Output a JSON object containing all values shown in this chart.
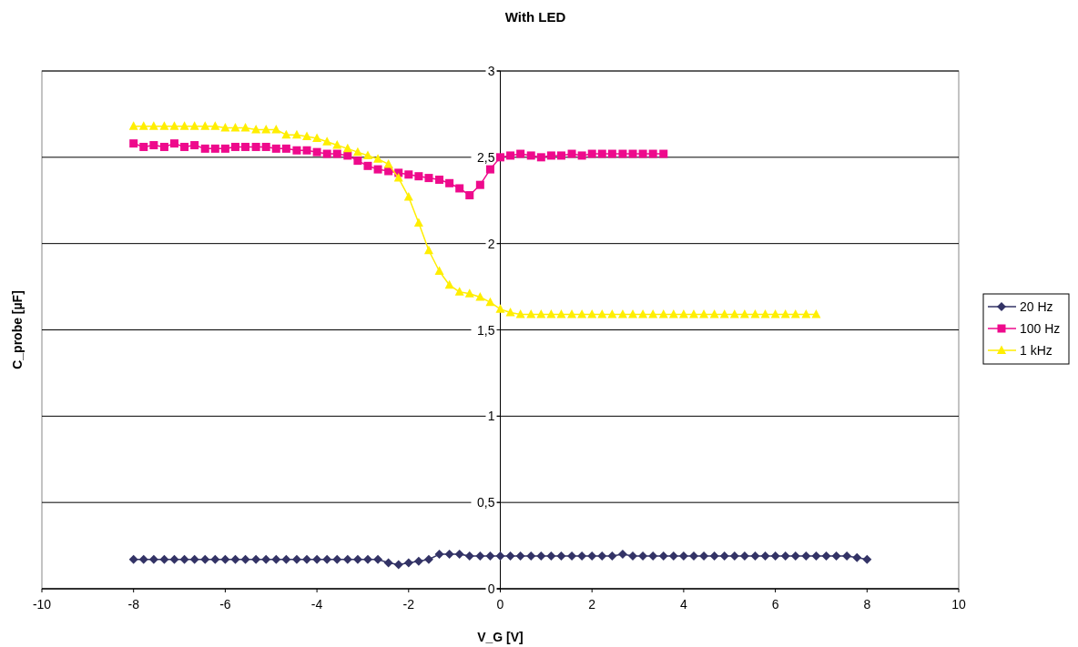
{
  "chart_data": {
    "type": "line",
    "title": "With LED",
    "xlabel": "V_G [V]",
    "ylabel": "C_probe [µF]",
    "xlim": [
      -10,
      10
    ],
    "xticks": [
      -10,
      -8,
      -6,
      -4,
      -2,
      0,
      2,
      4,
      6,
      8,
      10
    ],
    "ylim": [
      0,
      3
    ],
    "yticks": [
      0,
      {
        "value": 0.5,
        "label": "0,5"
      },
      1,
      {
        "value": 1.5,
        "label": "1,5"
      },
      2,
      {
        "value": 2.5,
        "label": "2,5"
      },
      3
    ],
    "grid": "y",
    "legend": "right",
    "series": [
      {
        "name": "20 Hz",
        "color": "#333366",
        "marker": "diamond",
        "x": [
          -8,
          -7.78,
          -7.56,
          -7.33,
          -7.11,
          -6.89,
          -6.67,
          -6.44,
          -6.22,
          -6,
          -5.78,
          -5.56,
          -5.33,
          -5.11,
          -4.89,
          -4.67,
          -4.44,
          -4.22,
          -4,
          -3.78,
          -3.56,
          -3.33,
          -3.11,
          -2.89,
          -2.67,
          -2.44,
          -2.22,
          -2,
          -1.78,
          -1.56,
          -1.33,
          -1.11,
          -0.89,
          -0.67,
          -0.44,
          -0.22,
          0,
          0.22,
          0.44,
          0.67,
          0.89,
          1.11,
          1.33,
          1.56,
          1.78,
          2,
          2.22,
          2.44,
          2.67,
          2.89,
          3.11,
          3.33,
          3.56,
          3.78,
          4,
          4.22,
          4.44,
          4.67,
          4.89,
          5.11,
          5.33,
          5.56,
          5.78,
          6,
          6.22,
          6.44,
          6.67,
          6.89,
          7.11,
          7.33,
          7.56,
          7.78,
          8
        ],
        "values": [
          0.17,
          0.17,
          0.17,
          0.17,
          0.17,
          0.17,
          0.17,
          0.17,
          0.17,
          0.17,
          0.17,
          0.17,
          0.17,
          0.17,
          0.17,
          0.17,
          0.17,
          0.17,
          0.17,
          0.17,
          0.17,
          0.17,
          0.17,
          0.17,
          0.17,
          0.15,
          0.14,
          0.15,
          0.16,
          0.17,
          0.2,
          0.2,
          0.2,
          0.19,
          0.19,
          0.19,
          0.19,
          0.19,
          0.19,
          0.19,
          0.19,
          0.19,
          0.19,
          0.19,
          0.19,
          0.19,
          0.19,
          0.19,
          0.2,
          0.19,
          0.19,
          0.19,
          0.19,
          0.19,
          0.19,
          0.19,
          0.19,
          0.19,
          0.19,
          0.19,
          0.19,
          0.19,
          0.19,
          0.19,
          0.19,
          0.19,
          0.19,
          0.19,
          0.19,
          0.19,
          0.19,
          0.18,
          0.17
        ]
      },
      {
        "name": "100 Hz",
        "color": "#ee0a8c",
        "marker": "square",
        "x": [
          -8,
          -7.78,
          -7.56,
          -7.33,
          -7.11,
          -6.89,
          -6.67,
          -6.44,
          -6.22,
          -6,
          -5.78,
          -5.56,
          -5.33,
          -5.11,
          -4.89,
          -4.67,
          -4.44,
          -4.22,
          -4,
          -3.78,
          -3.56,
          -3.33,
          -3.11,
          -2.89,
          -2.67,
          -2.44,
          -2.22,
          -2,
          -1.78,
          -1.56,
          -1.33,
          -1.11,
          -0.89,
          -0.67,
          -0.44,
          -0.22,
          0,
          0.22,
          0.44,
          0.67,
          0.89,
          1.11,
          1.33,
          1.56,
          1.78,
          2,
          2.22,
          2.44,
          2.67,
          2.89,
          3.11,
          3.33,
          3.56
        ],
        "values": [
          2.58,
          2.56,
          2.57,
          2.56,
          2.58,
          2.56,
          2.57,
          2.55,
          2.55,
          2.55,
          2.56,
          2.56,
          2.56,
          2.56,
          2.55,
          2.55,
          2.54,
          2.54,
          2.53,
          2.52,
          2.52,
          2.51,
          2.48,
          2.45,
          2.43,
          2.42,
          2.41,
          2.4,
          2.39,
          2.38,
          2.37,
          2.35,
          2.32,
          2.28,
          2.34,
          2.43,
          2.5,
          2.51,
          2.52,
          2.51,
          2.5,
          2.51,
          2.51,
          2.52,
          2.51,
          2.52,
          2.52,
          2.52,
          2.52,
          2.52,
          2.52,
          2.52,
          2.52
        ]
      },
      {
        "name": "1 kHz",
        "color": "#ffee00",
        "marker": "triangle",
        "x": [
          -8,
          -7.78,
          -7.56,
          -7.33,
          -7.11,
          -6.89,
          -6.67,
          -6.44,
          -6.22,
          -6,
          -5.78,
          -5.56,
          -5.33,
          -5.11,
          -4.89,
          -4.67,
          -4.44,
          -4.22,
          -4,
          -3.78,
          -3.56,
          -3.33,
          -3.11,
          -2.89,
          -2.67,
          -2.44,
          -2.22,
          -2,
          -1.78,
          -1.56,
          -1.33,
          -1.11,
          -0.89,
          -0.67,
          -0.44,
          -0.22,
          0,
          0.22,
          0.44,
          0.67,
          0.89,
          1.11,
          1.33,
          1.56,
          1.78,
          2,
          2.22,
          2.44,
          2.67,
          2.89,
          3.11,
          3.33,
          3.56,
          3.78,
          4,
          4.22,
          4.44,
          4.67,
          4.89,
          5.11,
          5.33,
          5.56,
          5.78,
          6,
          6.22,
          6.44,
          6.67,
          6.89
        ],
        "values": [
          2.68,
          2.68,
          2.68,
          2.68,
          2.68,
          2.68,
          2.68,
          2.68,
          2.68,
          2.67,
          2.67,
          2.67,
          2.66,
          2.66,
          2.66,
          2.63,
          2.63,
          2.62,
          2.61,
          2.59,
          2.57,
          2.55,
          2.53,
          2.51,
          2.49,
          2.46,
          2.38,
          2.27,
          2.12,
          1.96,
          1.84,
          1.76,
          1.72,
          1.71,
          1.69,
          1.66,
          1.62,
          1.6,
          1.59,
          1.59,
          1.59,
          1.59,
          1.59,
          1.59,
          1.59,
          1.59,
          1.59,
          1.59,
          1.59,
          1.59,
          1.59,
          1.59,
          1.59,
          1.59,
          1.59,
          1.59,
          1.59,
          1.59,
          1.59,
          1.59,
          1.59,
          1.59,
          1.59,
          1.59,
          1.59,
          1.59,
          1.59,
          1.59
        ]
      }
    ]
  }
}
